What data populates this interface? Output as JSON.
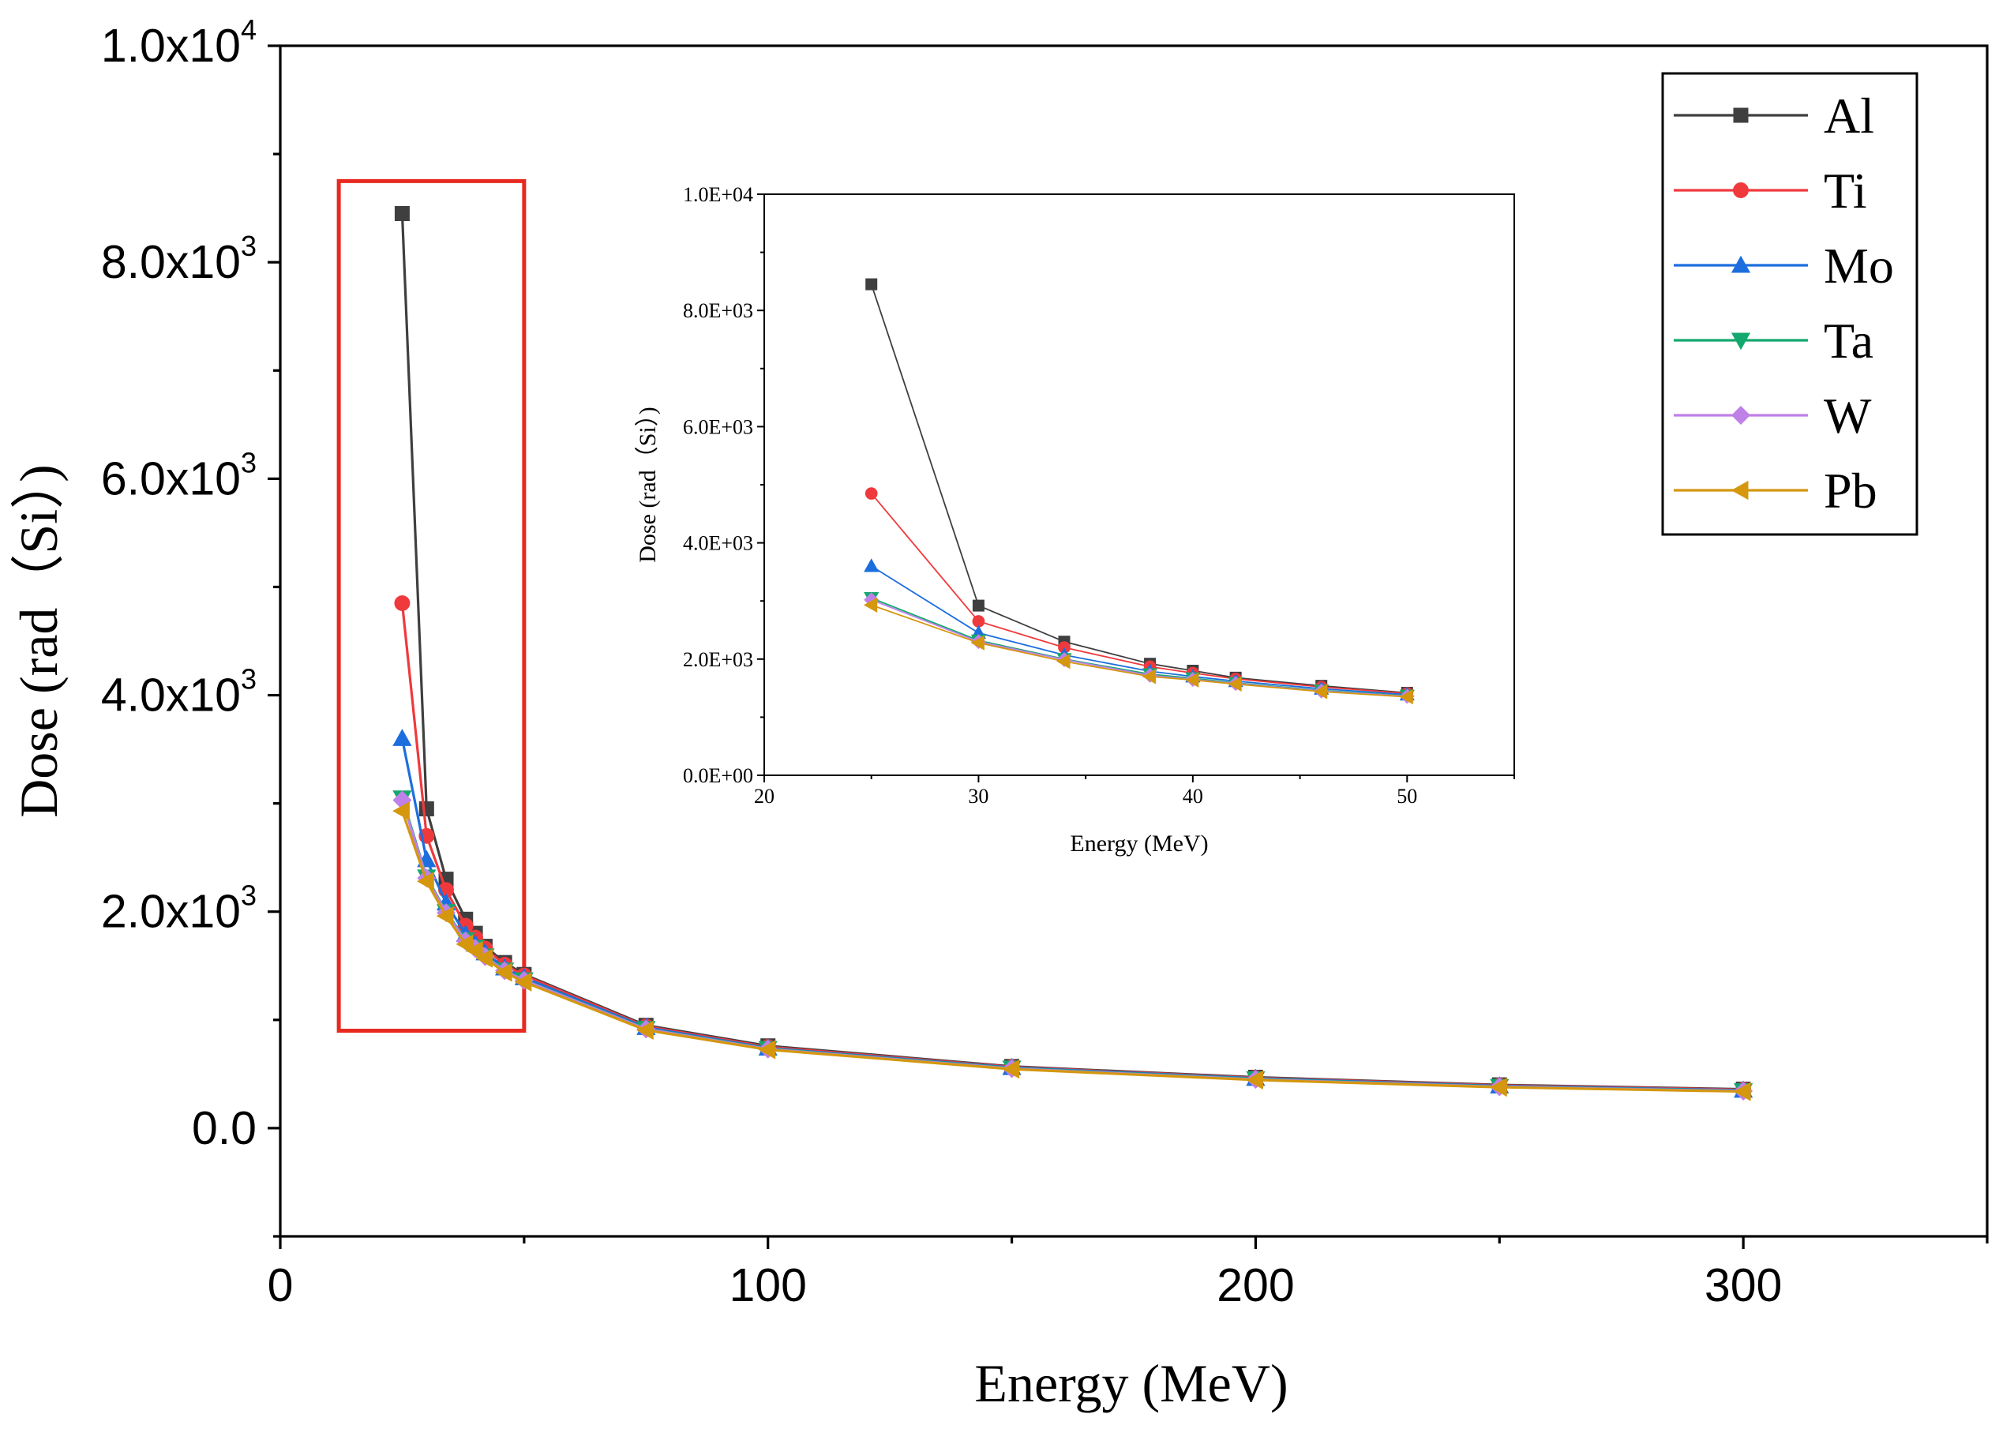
{
  "chart_data": [
    {
      "id": "main",
      "type": "line",
      "title": "",
      "xlabel": "Energy (MeV)",
      "ylabel": "Dose (rad（Si）)",
      "xlim": [
        0,
        350
      ],
      "ylim": [
        -1000,
        10000
      ],
      "x_ticks": [
        0,
        100,
        200,
        300
      ],
      "x_tick_labels": [
        "0",
        "100",
        "200",
        "300"
      ],
      "y_ticks": [
        0,
        2000,
        4000,
        6000,
        8000,
        10000
      ],
      "y_tick_labels": [
        {
          "base": "0.0",
          "exp": ""
        },
        {
          "base": "2.0x10",
          "exp": "3"
        },
        {
          "base": "4.0x10",
          "exp": "3"
        },
        {
          "base": "6.0x10",
          "exp": "3"
        },
        {
          "base": "8.0x10",
          "exp": "3"
        },
        {
          "base": "1.0x10",
          "exp": "4"
        }
      ],
      "legend_position": "top-right",
      "highlight_box": {
        "x_range": [
          12,
          50
        ],
        "y_range": [
          900,
          8750
        ],
        "color": "#e8291f"
      },
      "x": [
        25,
        30,
        34,
        38,
        40,
        42,
        46,
        50,
        75,
        100,
        150,
        200,
        250,
        300
      ],
      "series": [
        {
          "name": "Al",
          "color": "#3f3f3f",
          "marker": "square",
          "values": [
            8450,
            2950,
            2300,
            1930,
            1800,
            1680,
            1530,
            1420,
            950,
            760,
            570,
            470,
            400,
            360
          ]
        },
        {
          "name": "Ti",
          "color": "#f0393c",
          "marker": "circle",
          "values": [
            4850,
            2700,
            2200,
            1870,
            1760,
            1660,
            1510,
            1410,
            940,
            750,
            565,
            465,
            395,
            355
          ]
        },
        {
          "name": "Mo",
          "color": "#1c6ede",
          "marker": "triangle-up",
          "values": [
            3600,
            2480,
            2080,
            1790,
            1700,
            1620,
            1480,
            1390,
            930,
            740,
            560,
            460,
            390,
            350
          ]
        },
        {
          "name": "Ta",
          "color": "#14a86e",
          "marker": "triangle-down",
          "values": [
            3050,
            2320,
            2000,
            1740,
            1670,
            1590,
            1460,
            1370,
            920,
            735,
            555,
            455,
            385,
            345
          ]
        },
        {
          "name": "W",
          "color": "#bf80e8",
          "marker": "diamond",
          "values": [
            3030,
            2310,
            1990,
            1730,
            1660,
            1585,
            1455,
            1365,
            915,
            730,
            550,
            450,
            382,
            342
          ]
        },
        {
          "name": "Pb",
          "color": "#d4970e",
          "marker": "triangle-left",
          "values": [
            2930,
            2280,
            1960,
            1700,
            1640,
            1570,
            1440,
            1350,
            905,
            725,
            545,
            445,
            378,
            338
          ]
        }
      ]
    },
    {
      "id": "inset",
      "type": "line",
      "title": "",
      "xlabel": "Energy (MeV)",
      "ylabel": "Dose (rad（Si）)",
      "xlim": [
        20,
        55
      ],
      "ylim": [
        0,
        10000
      ],
      "x_ticks": [
        20,
        30,
        40,
        50
      ],
      "x_tick_labels": [
        "20",
        "30",
        "40",
        "50"
      ],
      "y_ticks": [
        0,
        2000,
        4000,
        6000,
        8000,
        10000
      ],
      "y_tick_labels": [
        "0.0E+00",
        "2.0E+03",
        "4.0E+03",
        "6.0E+03",
        "8.0E+03",
        "1.0E+04"
      ],
      "x": [
        25,
        30,
        34,
        38,
        40,
        42,
        46,
        50
      ],
      "series": [
        {
          "name": "Al",
          "color": "#3f3f3f",
          "marker": "square",
          "values": [
            8450,
            2920,
            2300,
            1920,
            1800,
            1680,
            1540,
            1420
          ]
        },
        {
          "name": "Ti",
          "color": "#f0393c",
          "marker": "circle",
          "values": [
            4850,
            2650,
            2200,
            1870,
            1760,
            1660,
            1520,
            1410
          ]
        },
        {
          "name": "Mo",
          "color": "#1c6ede",
          "marker": "triangle-up",
          "values": [
            3600,
            2450,
            2070,
            1790,
            1700,
            1620,
            1490,
            1390
          ]
        },
        {
          "name": "Ta",
          "color": "#14a86e",
          "marker": "triangle-down",
          "values": [
            3050,
            2320,
            2000,
            1740,
            1670,
            1590,
            1460,
            1370
          ]
        },
        {
          "name": "W",
          "color": "#bf80e8",
          "marker": "diamond",
          "values": [
            3020,
            2300,
            1990,
            1720,
            1650,
            1580,
            1450,
            1360
          ]
        },
        {
          "name": "Pb",
          "color": "#d4970e",
          "marker": "triangle-left",
          "values": [
            2930,
            2280,
            1960,
            1700,
            1640,
            1570,
            1440,
            1350
          ]
        }
      ]
    }
  ]
}
